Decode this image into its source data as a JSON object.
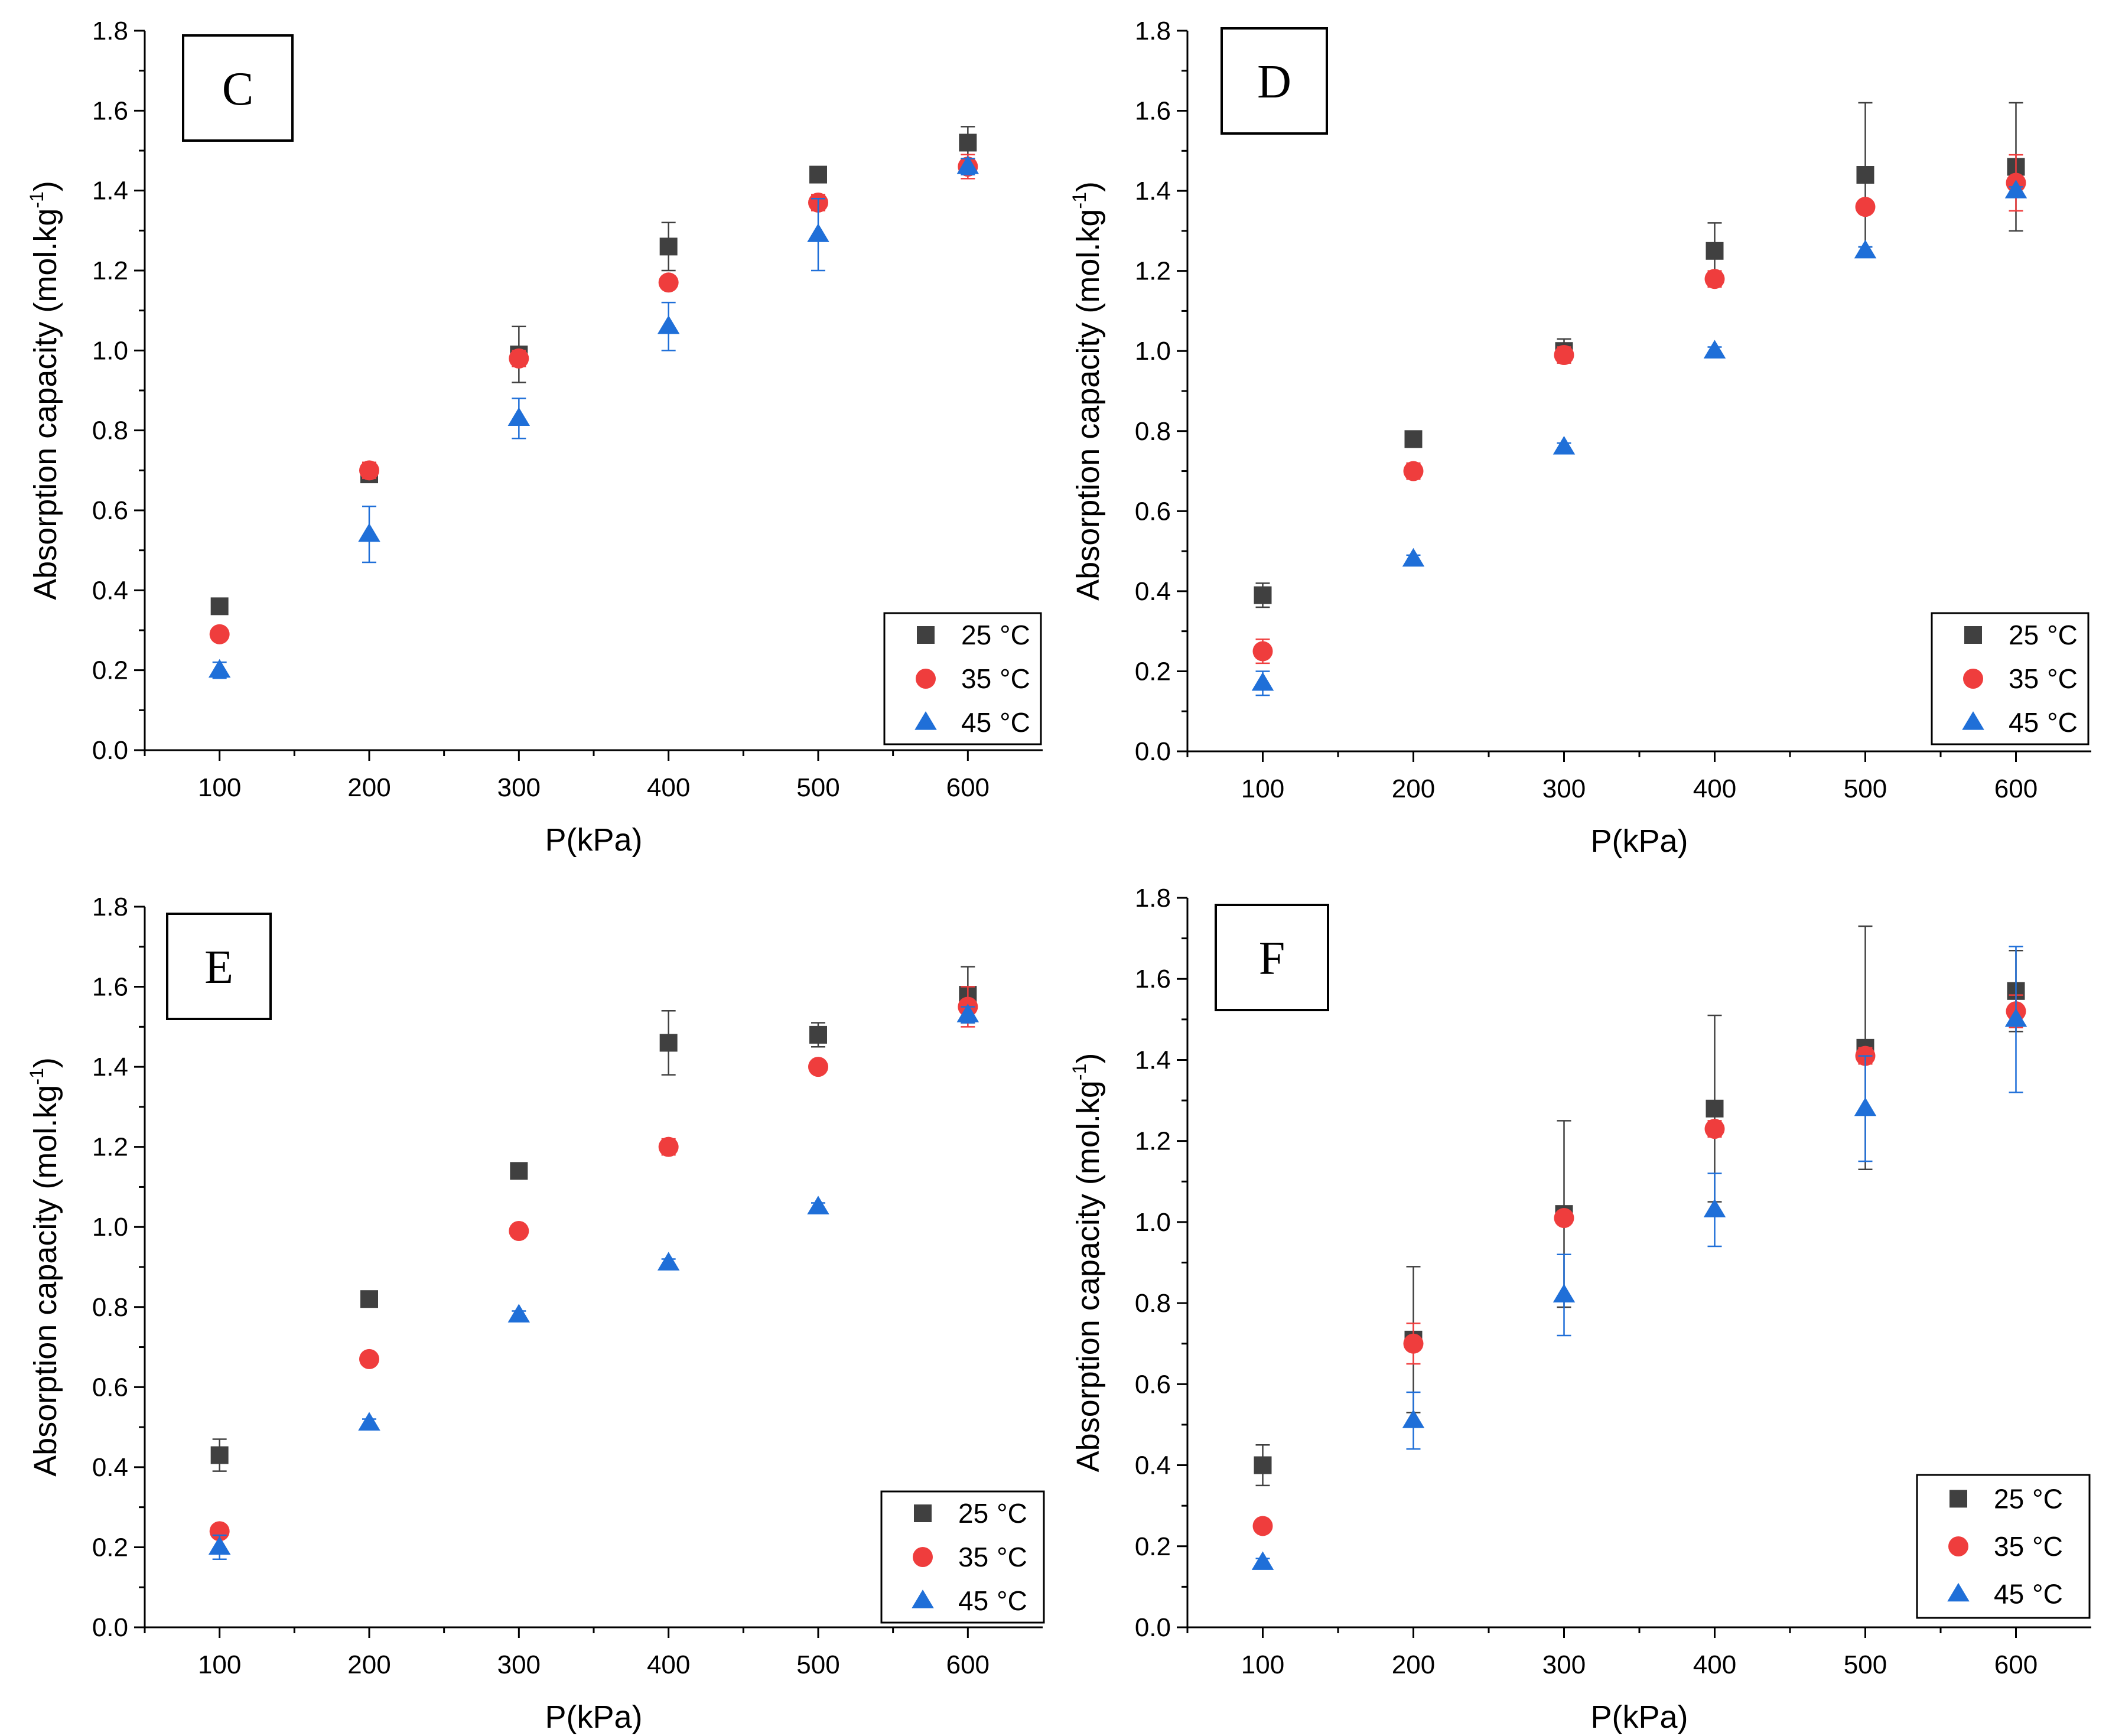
{
  "figure": {
    "colors": {
      "s25": "#404040",
      "s35": "#ef3d3d",
      "s45": "#1f6fd8"
    },
    "degree_sign": "°"
  },
  "chart_data": [
    {
      "type": "scatter",
      "panel_label": "C",
      "xlabel": "P(kPa)",
      "ylabel": "Absorption capacity (mol.kg",
      "ylabel_exponent": "-1",
      "ylabel_close": ")",
      "xticks": [
        100,
        200,
        300,
        400,
        500,
        600
      ],
      "xtick_labels": [
        "100",
        "200",
        "300",
        "400",
        "500",
        "600"
      ],
      "yticks": [
        0.0,
        0.2,
        0.4,
        0.6,
        0.8,
        1.0,
        1.2,
        1.4,
        1.6,
        1.8
      ],
      "ytick_labels": [
        "0.0",
        "0.2",
        "0.4",
        "0.6",
        "0.8",
        "1.0",
        "1.2",
        "1.4",
        "1.6",
        "1.8"
      ],
      "xlim": [
        50,
        650
      ],
      "ylim": [
        0,
        1.8
      ],
      "x": [
        100,
        200,
        300,
        400,
        500,
        600
      ],
      "series": [
        {
          "name": "25 °C",
          "temp": "25",
          "unit": "°C",
          "marker": "square",
          "color": "#404040",
          "values": [
            0.36,
            0.69,
            0.99,
            1.26,
            1.44,
            1.52
          ],
          "errors": [
            0.01,
            0.01,
            0.07,
            0.06,
            0.01,
            0.04
          ]
        },
        {
          "name": "35 °C",
          "temp": "35",
          "unit": "°C",
          "marker": "circle",
          "color": "#ef3d3d",
          "values": [
            0.29,
            0.7,
            0.98,
            1.17,
            1.37,
            1.46
          ],
          "errors": [
            0.01,
            0.02,
            0.02,
            0.01,
            0.02,
            0.03
          ]
        },
        {
          "name": "45 °C",
          "temp": "45",
          "unit": "°C",
          "marker": "triangle",
          "color": "#1f6fd8",
          "values": [
            0.2,
            0.54,
            0.83,
            1.06,
            1.29,
            1.46
          ],
          "errors": [
            0.02,
            0.07,
            0.05,
            0.06,
            0.09,
            0.02
          ]
        }
      ]
    },
    {
      "type": "scatter",
      "panel_label": "D",
      "xlabel": "P(kPa)",
      "ylabel": "Absorption capacity (mol.kg",
      "ylabel_exponent": "-1",
      "ylabel_close": ")",
      "xticks": [
        100,
        200,
        300,
        400,
        500,
        600
      ],
      "xtick_labels": [
        "100",
        "200",
        "300",
        "400",
        "500",
        "600"
      ],
      "yticks": [
        0.0,
        0.2,
        0.4,
        0.6,
        0.8,
        1.0,
        1.2,
        1.4,
        1.6,
        1.8
      ],
      "ytick_labels": [
        "0.0",
        "0.2",
        "0.4",
        "0.6",
        "0.8",
        "1.0",
        "1.2",
        "1.4",
        "1.6",
        "1.8"
      ],
      "xlim": [
        50,
        650
      ],
      "ylim": [
        0,
        1.8
      ],
      "x": [
        100,
        200,
        300,
        400,
        500,
        600
      ],
      "series": [
        {
          "name": "25 °C",
          "temp": "25",
          "unit": "°C",
          "marker": "square",
          "color": "#404040",
          "values": [
            0.39,
            0.78,
            1.0,
            1.25,
            1.44,
            1.46
          ],
          "errors": [
            0.03,
            0.02,
            0.03,
            0.07,
            0.18,
            0.16
          ]
        },
        {
          "name": "35 °C",
          "temp": "35",
          "unit": "°C",
          "marker": "circle",
          "color": "#ef3d3d",
          "values": [
            0.25,
            0.7,
            0.99,
            1.18,
            1.36,
            1.42
          ],
          "errors": [
            0.03,
            0.02,
            0.02,
            0.02,
            0.01,
            0.07
          ]
        },
        {
          "name": "45 °C",
          "temp": "45",
          "unit": "°C",
          "marker": "triangle",
          "color": "#1f6fd8",
          "values": [
            0.17,
            0.48,
            0.76,
            1.0,
            1.25,
            1.4
          ],
          "errors": [
            0.03,
            0.01,
            0.01,
            0.01,
            0.01,
            0.01
          ]
        }
      ]
    },
    {
      "type": "scatter",
      "panel_label": "E",
      "xlabel": "P(kPa)",
      "ylabel": "Absorption capacity (mol.kg",
      "ylabel_exponent": "-1",
      "ylabel_close": ")",
      "xticks": [
        100,
        200,
        300,
        400,
        500,
        600
      ],
      "xtick_labels": [
        "100",
        "200",
        "300",
        "400",
        "500",
        "600"
      ],
      "yticks": [
        0.0,
        0.2,
        0.4,
        0.6,
        0.8,
        1.0,
        1.2,
        1.4,
        1.6,
        1.8
      ],
      "ytick_labels": [
        "0.0",
        "0.2",
        "0.4",
        "0.6",
        "0.8",
        "1.0",
        "1.2",
        "1.4",
        "1.6",
        "1.8"
      ],
      "xlim": [
        50,
        650
      ],
      "ylim": [
        0,
        1.8
      ],
      "x": [
        100,
        200,
        300,
        400,
        500,
        600
      ],
      "series": [
        {
          "name": "25 °C",
          "temp": "25",
          "unit": "°C",
          "marker": "square",
          "color": "#404040",
          "values": [
            0.43,
            0.82,
            1.14,
            1.46,
            1.48,
            1.58
          ],
          "errors": [
            0.04,
            0.01,
            0.01,
            0.08,
            0.03,
            0.07
          ]
        },
        {
          "name": "35 °C",
          "temp": "35",
          "unit": "°C",
          "marker": "circle",
          "color": "#ef3d3d",
          "values": [
            0.24,
            0.67,
            0.99,
            1.2,
            1.4,
            1.55
          ],
          "errors": [
            0.01,
            0.01,
            0.01,
            0.02,
            0.01,
            0.05
          ]
        },
        {
          "name": "45 °C",
          "temp": "45",
          "unit": "°C",
          "marker": "triangle",
          "color": "#1f6fd8",
          "values": [
            0.2,
            0.51,
            0.78,
            0.91,
            1.05,
            1.53
          ],
          "errors": [
            0.03,
            0.01,
            0.01,
            0.01,
            0.01,
            0.02
          ]
        }
      ]
    },
    {
      "type": "scatter",
      "panel_label": "F",
      "xlabel": "P(kPa)",
      "ylabel": "Absorption capacity (mol.kg",
      "ylabel_exponent": "-1",
      "ylabel_close": ")",
      "xticks": [
        100,
        200,
        300,
        400,
        500,
        600
      ],
      "xtick_labels": [
        "100",
        "200",
        "300",
        "400",
        "500",
        "600"
      ],
      "yticks": [
        0.0,
        0.2,
        0.4,
        0.6,
        0.8,
        1.0,
        1.2,
        1.4,
        1.6,
        1.8
      ],
      "ytick_labels": [
        "0.0",
        "0.2",
        "0.4",
        "0.6",
        "0.8",
        "1.0",
        "1.2",
        "1.4",
        "1.6",
        "1.8"
      ],
      "xlim": [
        50,
        650
      ],
      "ylim": [
        0,
        1.8
      ],
      "x": [
        100,
        200,
        300,
        400,
        500,
        600
      ],
      "series": [
        {
          "name": "25 °C",
          "temp": "25",
          "unit": "°C",
          "marker": "square",
          "color": "#404040",
          "values": [
            0.4,
            0.71,
            1.02,
            1.28,
            1.43,
            1.57
          ],
          "errors": [
            0.05,
            0.18,
            0.23,
            0.23,
            0.3,
            0.1
          ]
        },
        {
          "name": "35 °C",
          "temp": "35",
          "unit": "°C",
          "marker": "circle",
          "color": "#ef3d3d",
          "values": [
            0.25,
            0.7,
            1.01,
            1.23,
            1.41,
            1.52
          ],
          "errors": [
            0.01,
            0.05,
            0.01,
            0.02,
            0.02,
            0.04
          ]
        },
        {
          "name": "45 °C",
          "temp": "45",
          "unit": "°C",
          "marker": "triangle",
          "color": "#1f6fd8",
          "values": [
            0.16,
            0.51,
            0.82,
            1.03,
            1.28,
            1.5
          ],
          "errors": [
            0.01,
            0.07,
            0.1,
            0.09,
            0.13,
            0.18
          ]
        }
      ]
    }
  ]
}
